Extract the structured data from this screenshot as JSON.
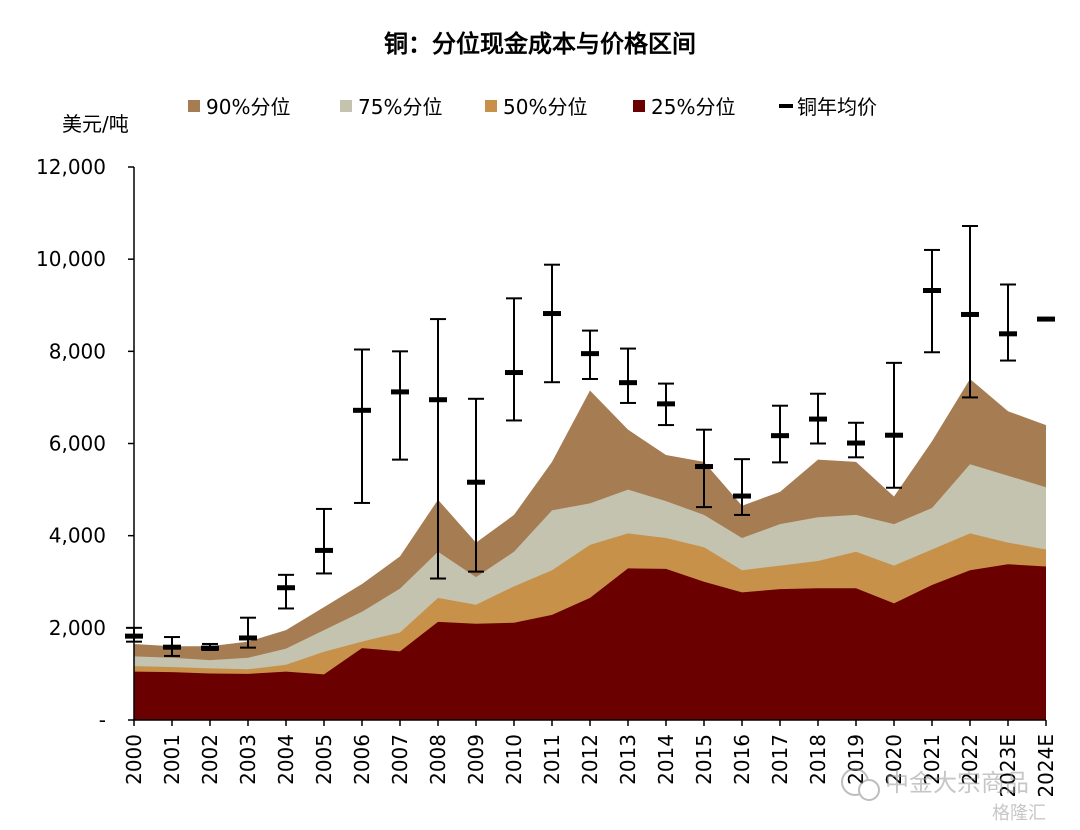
{
  "chart_data": {
    "type": "area",
    "title": "铜：分位现金成本与价格区间",
    "ylabel": "美元/吨",
    "xlabel": "",
    "ylim": [
      0,
      12000
    ],
    "y_ticks": [
      0,
      2000,
      4000,
      6000,
      8000,
      10000,
      12000
    ],
    "y_tick_labels": [
      "-",
      "2,000",
      "4,000",
      "6,000",
      "8,000",
      "10,000",
      "12,000"
    ],
    "categories": [
      "2000",
      "2001",
      "2002",
      "2003",
      "2004",
      "2005",
      "2006",
      "2007",
      "2008",
      "2009",
      "2010",
      "2011",
      "2012",
      "2013",
      "2014",
      "2015",
      "2016",
      "2017",
      "2018",
      "2019",
      "2020",
      "2021",
      "2022",
      "2023E",
      "2024E"
    ],
    "legend_position": "top",
    "series": [
      {
        "name": "90%分位",
        "color": "#a67c52",
        "values": [
          1650,
          1600,
          1600,
          1700,
          1950,
          2450,
          2950,
          3550,
          4780,
          3850,
          4450,
          5600,
          7150,
          6300,
          5750,
          5600,
          4650,
          4950,
          5650,
          5600,
          4850,
          6050,
          7400,
          6700,
          6400
        ]
      },
      {
        "name": "75%分位",
        "color": "#c4c3b0",
        "values": [
          1380,
          1350,
          1300,
          1350,
          1550,
          1950,
          2350,
          2850,
          3650,
          3100,
          3650,
          4550,
          4700,
          5000,
          4750,
          4450,
          3950,
          4250,
          4400,
          4450,
          4250,
          4600,
          5550,
          5300,
          5050
        ]
      },
      {
        "name": "50%分位",
        "color": "#c8914a",
        "values": [
          1170,
          1150,
          1120,
          1100,
          1200,
          1480,
          1700,
          1900,
          2650,
          2500,
          2900,
          3250,
          3800,
          4050,
          3950,
          3750,
          3250,
          3350,
          3450,
          3650,
          3350,
          3700,
          4050,
          3850,
          3700
        ]
      },
      {
        "name": "25%分位",
        "color": "#6b0000",
        "values": [
          1050,
          1040,
          1010,
          1000,
          1050,
          990,
          1560,
          1490,
          2130,
          2090,
          2110,
          2280,
          2650,
          3290,
          3280,
          3000,
          2770,
          2840,
          2860,
          2860,
          2530,
          2930,
          3250,
          3380,
          3330
        ]
      }
    ],
    "price_series": {
      "name": "铜年均价",
      "color": "#000000",
      "avg": [
        1820,
        1580,
        1560,
        1780,
        2870,
        3680,
        6720,
        7120,
        6950,
        5160,
        7540,
        8820,
        7950,
        7320,
        6860,
        5500,
        4860,
        6170,
        6530,
        6010,
        6180,
        9320,
        8800,
        8380,
        8700
      ],
      "high": [
        2000,
        1800,
        1650,
        2220,
        3150,
        4580,
        8040,
        8000,
        8700,
        6970,
        9150,
        9880,
        8450,
        8060,
        7300,
        6300,
        5660,
        6820,
        7080,
        6450,
        7750,
        10200,
        10720,
        9450,
        null
      ],
      "low": [
        1700,
        1390,
        1520,
        1570,
        2420,
        3180,
        4710,
        5650,
        3070,
        3220,
        6500,
        7330,
        7400,
        6880,
        6400,
        4620,
        4450,
        5590,
        6000,
        5700,
        5040,
        7980,
        7000,
        7800,
        null
      ]
    }
  },
  "watermark": {
    "line1": "中金大宗商品",
    "line2": "格隆汇"
  }
}
